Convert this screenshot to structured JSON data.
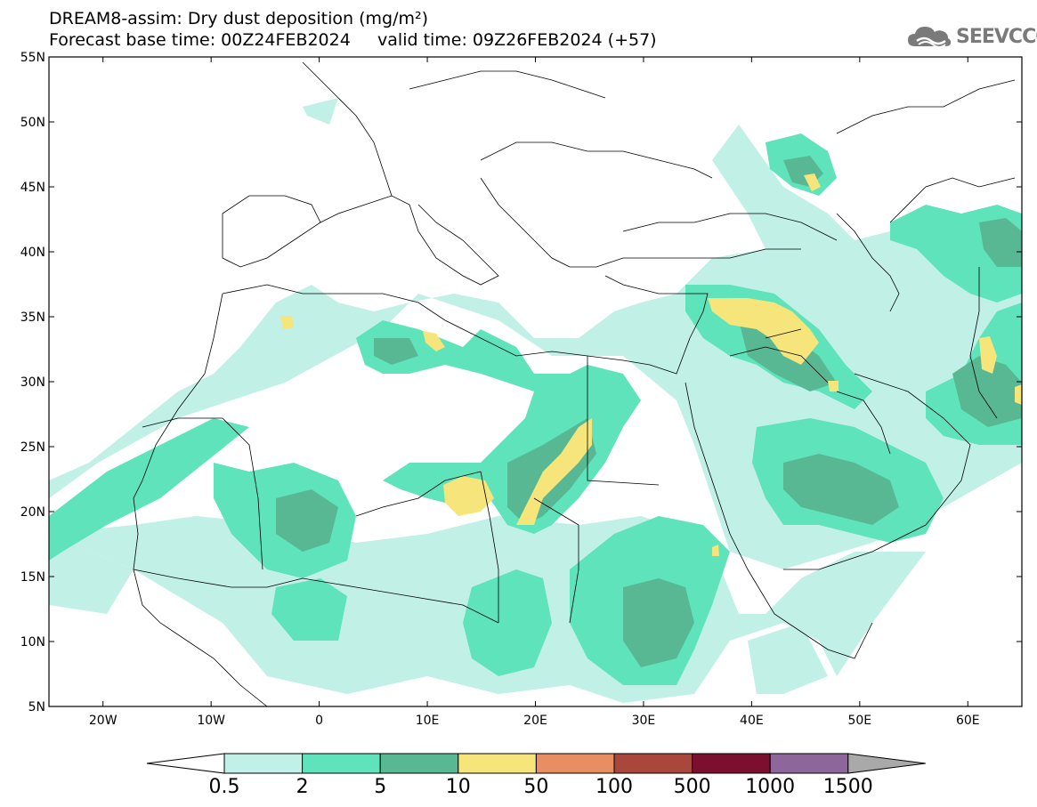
{
  "title": {
    "line1": "DREAM8-assim: Dry dust deposition (mg/m²)",
    "line2": "Forecast base time: 00Z24FEB2024     valid time: 09Z26FEB2024 (+57)"
  },
  "logo": {
    "text": "SEEVCCC",
    "icon": "cloud-icon"
  },
  "map": {
    "lon_range": [
      -25,
      65
    ],
    "lat_range": [
      5,
      55
    ],
    "lon_ticks": [
      {
        "value": -20,
        "label": "20W"
      },
      {
        "value": -10,
        "label": "10W"
      },
      {
        "value": 0,
        "label": "0"
      },
      {
        "value": 10,
        "label": "10E"
      },
      {
        "value": 20,
        "label": "20E"
      },
      {
        "value": 30,
        "label": "30E"
      },
      {
        "value": 40,
        "label": "40E"
      },
      {
        "value": 50,
        "label": "50E"
      },
      {
        "value": 60,
        "label": "60E"
      }
    ],
    "lat_ticks": [
      {
        "value": 55,
        "label": "55N"
      },
      {
        "value": 50,
        "label": "50N"
      },
      {
        "value": 45,
        "label": "45N"
      },
      {
        "value": 40,
        "label": "40N"
      },
      {
        "value": 35,
        "label": "35N"
      },
      {
        "value": 30,
        "label": "30N"
      },
      {
        "value": 25,
        "label": "25N"
      },
      {
        "value": 20,
        "label": "20N"
      },
      {
        "value": 15,
        "label": "15N"
      },
      {
        "value": 10,
        "label": "10N"
      },
      {
        "value": 5,
        "label": "5N"
      }
    ]
  },
  "colorbar": {
    "labels": [
      "0.5",
      "2",
      "5",
      "10",
      "50",
      "100",
      "500",
      "1000",
      "1500"
    ],
    "colors": [
      "#c0f0e6",
      "#5ee3bb",
      "#58b894",
      "#f5e57a",
      "#e98e62",
      "#a9473d",
      "#7c0e2f",
      "#8d679c"
    ],
    "under_color": "#ffffff",
    "over_color": "#a9a9a9"
  },
  "colors": {
    "c1": "#c0f0e6",
    "c2": "#5ee3bb",
    "c3": "#58b894",
    "c4": "#f5e57a",
    "border": "#000000"
  }
}
